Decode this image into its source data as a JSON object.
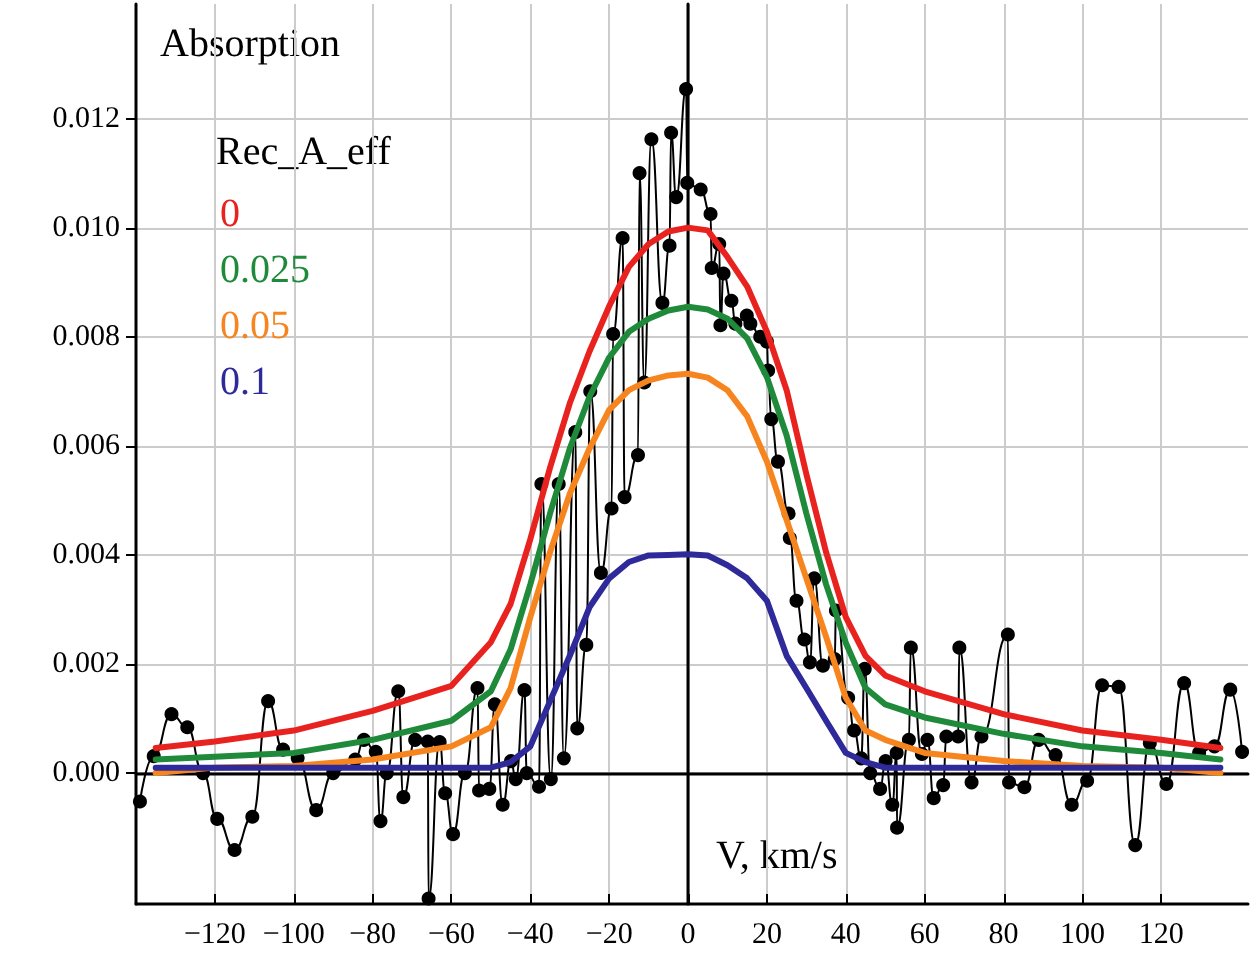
{
  "chart_data": {
    "type": "line",
    "ylabel": "Absorption",
    "xlabel": "V, km/s",
    "legend_title": "Rec_A_eff",
    "legend": "top left",
    "grid": true,
    "marker": "none",
    "line_style": "solid",
    "xlim": [
      -140,
      142
    ],
    "ylim": [
      -0.0024,
      0.0141
    ],
    "xticks": [
      {
        "value": -120,
        "label": "−120"
      },
      {
        "value": -100,
        "label": "−100"
      },
      {
        "value": -80,
        "label": "−80"
      },
      {
        "value": -60,
        "label": "−60"
      },
      {
        "value": -40,
        "label": "−40"
      },
      {
        "value": -20,
        "label": "−20"
      },
      0,
      20,
      40,
      60,
      80,
      100,
      120
    ],
    "yticks": [
      {
        "value": 0,
        "label": "0.000"
      },
      {
        "value": 0.002,
        "label": "0.002"
      },
      {
        "value": 0.004,
        "label": "0.004"
      },
      {
        "value": 0.006,
        "label": "0.006"
      },
      {
        "value": 0.008,
        "label": "0.008"
      },
      {
        "value": 0.01,
        "label": "0.010"
      },
      {
        "value": 0.012,
        "label": "0.012"
      }
    ],
    "series": [
      {
        "color": "#000000",
        "marker": "circle",
        "x": [
          -139,
          -135.5,
          -131,
          -127,
          -123,
          -119.4,
          -115,
          -110.5,
          -106.5,
          -102.7,
          -99,
          -94.3,
          -90,
          -84.4,
          -82.2,
          -79.2,
          -78,
          -76.4,
          -73.5,
          -72.2,
          -69.2,
          -66,
          -65.8,
          -63,
          -61.6,
          -59.6,
          -56.6,
          -53.4,
          -53,
          -50.4,
          -49,
          -47,
          -44.9,
          -43.7,
          -41.5,
          -40.9,
          -37.8,
          -37.2,
          -34.8,
          -32.8,
          -31.5,
          -28.6,
          -28.1,
          -25.8,
          -24.8,
          -22.1,
          -19.4,
          -19,
          -16.6,
          -16.1,
          -12.7,
          -12.3,
          -11.1,
          -9.3,
          -6.5,
          -4.7,
          -4.3,
          -3,
          -0.5,
          -0.2,
          3.2,
          5.7,
          6,
          7.9,
          8.2,
          9,
          11,
          12,
          14.9,
          15.8,
          18.3,
          20,
          20.3,
          21.1,
          22.8,
          25.5,
          25.8,
          27.5,
          29.5,
          30.9,
          32,
          34.2,
          37.2,
          37.5,
          40.6,
          42.1,
          43.9,
          44.8,
          46.2,
          48.7,
          50.1,
          51.8,
          52.9,
          53,
          56,
          56.5,
          59.3,
          60.7,
          62.3,
          64.7,
          65.5,
          68.5,
          68.8,
          71.9,
          74.4,
          81.1,
          81.4,
          85.3,
          88.9,
          93.2,
          97.3,
          101.2,
          105,
          109.2,
          113.4,
          117.1,
          121.3,
          125.8,
          129.6,
          133.5,
          137.5,
          140.5
        ],
        "values": [
          -0.00052,
          0.00031,
          0.00108,
          0.00084,
          0,
          -0.00084,
          -0.00141,
          -0.0008,
          0.00132,
          0.00043,
          0.00027,
          -0.00068,
          0,
          0.00025,
          0.00061,
          0.00039,
          -0.00088,
          0,
          0.0015,
          -0.00044,
          0.00061,
          0.00058,
          -0.0023,
          0.00057,
          -0.00037,
          -0.00112,
          0,
          0.00156,
          -0.00032,
          -0.00029,
          0.00126,
          -0.00058,
          0.00022,
          -0.00011,
          0.00152,
          0,
          -0.00025,
          0.0053,
          -0.00011,
          0.0053,
          0.00027,
          0.00625,
          0.00082,
          0.00235,
          0.007,
          0.00367,
          0.00485,
          0.00805,
          0.00981,
          0.00506,
          0.00583,
          0.011,
          0.00716,
          0.01162,
          0.00862,
          0.00967,
          0.01174,
          0.01056,
          0.01254,
          0.01082,
          0.0107,
          0.01025,
          0.00926,
          0.0097,
          0.00821,
          0.00916,
          0.00866,
          0.00824,
          0.00839,
          0.00824,
          0.008,
          0.00791,
          0.00738,
          0.00649,
          0.00571,
          0.00476,
          0.00431,
          0.00316,
          0.00245,
          0.00203,
          0.00357,
          0.00197,
          0.00209,
          0.00298,
          0.00138,
          0.00078,
          0.00027,
          0.00191,
          0,
          -0.00029,
          0.00022,
          -0.00058,
          0.00037,
          -0.001,
          0.00061,
          0.0023,
          0.00035,
          0.00061,
          -0.00046,
          -0.00022,
          0.00067,
          0.00067,
          0.0023,
          -0.00017,
          0.00067,
          0.00254,
          -0.00017,
          -0.00026,
          0.00061,
          0.00033,
          -0.00058,
          -0.00014,
          0.00161,
          0.00158,
          -0.00132,
          0.00055,
          -0.0002,
          0.00165,
          0.00037,
          0.00049,
          0.00153,
          0.00039
        ]
      },
      {
        "name": "0",
        "color": "#e8231f",
        "x": [
          -135,
          -120,
          -100,
          -80,
          -60,
          -50,
          -45,
          -40,
          -35,
          -30,
          -25,
          -20,
          -15,
          -10,
          -5,
          0,
          5,
          10,
          15,
          20,
          25,
          30,
          35,
          40,
          45,
          50,
          60,
          80,
          100,
          120,
          135
        ],
        "values": [
          0.00046,
          0.00058,
          0.00078,
          0.00114,
          0.0016,
          0.0024,
          0.0031,
          0.00429,
          0.0056,
          0.00678,
          0.00773,
          0.00856,
          0.00928,
          0.0097,
          0.00993,
          0.01,
          0.00995,
          0.00946,
          0.00892,
          0.00809,
          0.00702,
          0.00548,
          0.00405,
          0.00286,
          0.00215,
          0.00179,
          0.0015,
          0.00108,
          0.00078,
          0.00061,
          0.00046
        ]
      },
      {
        "name": "0.025",
        "color": "#1e8a3a",
        "x": [
          -135,
          -120,
          -100,
          -80,
          -60,
          -50,
          -45,
          -40,
          -35,
          -30,
          -25,
          -20,
          -15,
          -10,
          -5,
          0,
          5,
          10,
          15,
          20,
          25,
          30,
          35,
          40,
          45,
          50,
          60,
          80,
          100,
          120,
          135
        ],
        "values": [
          0.00025,
          0.0003,
          0.00037,
          0.00061,
          0.00096,
          0.0015,
          0.00227,
          0.00346,
          0.00476,
          0.00595,
          0.0069,
          0.00762,
          0.00809,
          0.00833,
          0.00848,
          0.00855,
          0.0085,
          0.00833,
          0.00797,
          0.00726,
          0.00619,
          0.00476,
          0.00346,
          0.00239,
          0.00156,
          0.00126,
          0.00102,
          0.00072,
          0.00049,
          0.00037,
          0.00025
        ]
      },
      {
        "name": "0.05",
        "color": "#f7851f",
        "x": [
          -135,
          -120,
          -100,
          -80,
          -60,
          -50,
          -45,
          -40,
          -35,
          -30,
          -25,
          -20,
          -15,
          -10,
          -5,
          0,
          5,
          10,
          15,
          20,
          25,
          30,
          35,
          40,
          45,
          50,
          60,
          80,
          100,
          120,
          135
        ],
        "values": [
          0,
          0.0001,
          0.00013,
          0.00025,
          0.00049,
          0.00084,
          0.00156,
          0.00286,
          0.00405,
          0.00512,
          0.00595,
          0.00666,
          0.00702,
          0.0072,
          0.00729,
          0.00732,
          0.00725,
          0.00702,
          0.00654,
          0.00571,
          0.00464,
          0.00357,
          0.0025,
          0.00138,
          0.00078,
          0.00061,
          0.00037,
          0.00022,
          0.00013,
          0.0001,
          0
        ]
      },
      {
        "name": "0.1",
        "color": "#2e2a9a",
        "x": [
          -135,
          -120,
          -100,
          -80,
          -60,
          -50,
          -45,
          -40,
          -35,
          -30,
          -25,
          -20,
          -15,
          -10,
          -5,
          0,
          5,
          10,
          15,
          20,
          25,
          30,
          35,
          40,
          45,
          50,
          60,
          80,
          100,
          120,
          135
        ],
        "values": [
          0.0001,
          0.0001,
          0.0001,
          0.0001,
          0.0001,
          0.0001,
          0.0002,
          0.00049,
          0.00132,
          0.00215,
          0.00304,
          0.00357,
          0.00387,
          0.00399,
          0.004,
          0.00401,
          0.00399,
          0.00381,
          0.00357,
          0.00316,
          0.00215,
          0.00156,
          0.00096,
          0.00037,
          0.0002,
          0.0001,
          0.0001,
          0.0001,
          0.0001,
          0.0001,
          0.0001
        ]
      }
    ]
  }
}
